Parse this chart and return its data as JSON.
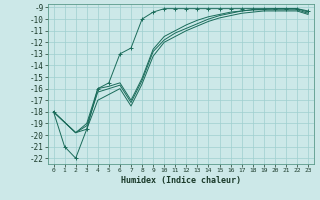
{
  "title": "",
  "xlabel": "Humidex (Indice chaleur)",
  "ylabel": "",
  "bg_color": "#cce8e8",
  "grid_color": "#9fcfcf",
  "line_color": "#1a6b5a",
  "xlim": [
    -0.5,
    23.5
  ],
  "ylim": [
    -22.5,
    -8.7
  ],
  "xticks": [
    0,
    1,
    2,
    3,
    4,
    5,
    6,
    7,
    8,
    9,
    10,
    11,
    12,
    13,
    14,
    15,
    16,
    17,
    18,
    19,
    20,
    21,
    22,
    23
  ],
  "yticks": [
    -9,
    -10,
    -11,
    -12,
    -13,
    -14,
    -15,
    -16,
    -17,
    -18,
    -19,
    -20,
    -21,
    -22
  ],
  "lines": [
    {
      "x": [
        0,
        1,
        2,
        3,
        4,
        5,
        6,
        7,
        8,
        9,
        10,
        11,
        12,
        13,
        14,
        15,
        16,
        17,
        18,
        19,
        20,
        21,
        22,
        23
      ],
      "y": [
        -18,
        -21,
        -22,
        -19.5,
        -16,
        -15.5,
        -13,
        -12.5,
        -10,
        -9.4,
        -9.1,
        -9.1,
        -9.1,
        -9.1,
        -9.1,
        -9.1,
        -9.1,
        -9.1,
        -9.1,
        -9.1,
        -9.1,
        -9.1,
        -9.1,
        -9.3
      ],
      "marker": "+"
    },
    {
      "x": [
        0,
        2,
        3,
        4,
        5,
        6,
        7,
        8,
        9,
        10,
        11,
        12,
        13,
        14,
        15,
        16,
        17,
        18,
        19,
        20,
        21,
        22,
        23
      ],
      "y": [
        -18,
        -19.8,
        -19.2,
        -16.3,
        -16.0,
        -15.7,
        -17.2,
        -15.3,
        -12.8,
        -11.8,
        -11.2,
        -10.8,
        -10.4,
        -10.0,
        -9.7,
        -9.5,
        -9.3,
        -9.2,
        -9.2,
        -9.2,
        -9.2,
        -9.2,
        -9.5
      ],
      "marker": null
    },
    {
      "x": [
        0,
        2,
        3,
        4,
        5,
        6,
        7,
        8,
        9,
        10,
        11,
        12,
        13,
        14,
        15,
        16,
        17,
        18,
        19,
        20,
        21,
        22,
        23
      ],
      "y": [
        -18,
        -19.8,
        -19.0,
        -16.0,
        -15.8,
        -15.5,
        -17.0,
        -15.1,
        -12.6,
        -11.5,
        -11.0,
        -10.5,
        -10.1,
        -9.8,
        -9.6,
        -9.4,
        -9.3,
        -9.2,
        -9.15,
        -9.1,
        -9.1,
        -9.1,
        -9.4
      ],
      "marker": null
    },
    {
      "x": [
        0,
        2,
        3,
        4,
        5,
        6,
        7,
        8,
        9,
        10,
        11,
        12,
        13,
        14,
        15,
        16,
        17,
        18,
        19,
        20,
        21,
        22,
        23
      ],
      "y": [
        -18,
        -19.8,
        -19.5,
        -17.0,
        -16.5,
        -16.0,
        -17.5,
        -15.6,
        -13.2,
        -12.0,
        -11.5,
        -11.0,
        -10.6,
        -10.2,
        -9.9,
        -9.7,
        -9.5,
        -9.4,
        -9.3,
        -9.3,
        -9.3,
        -9.3,
        -9.6
      ],
      "marker": null
    }
  ]
}
